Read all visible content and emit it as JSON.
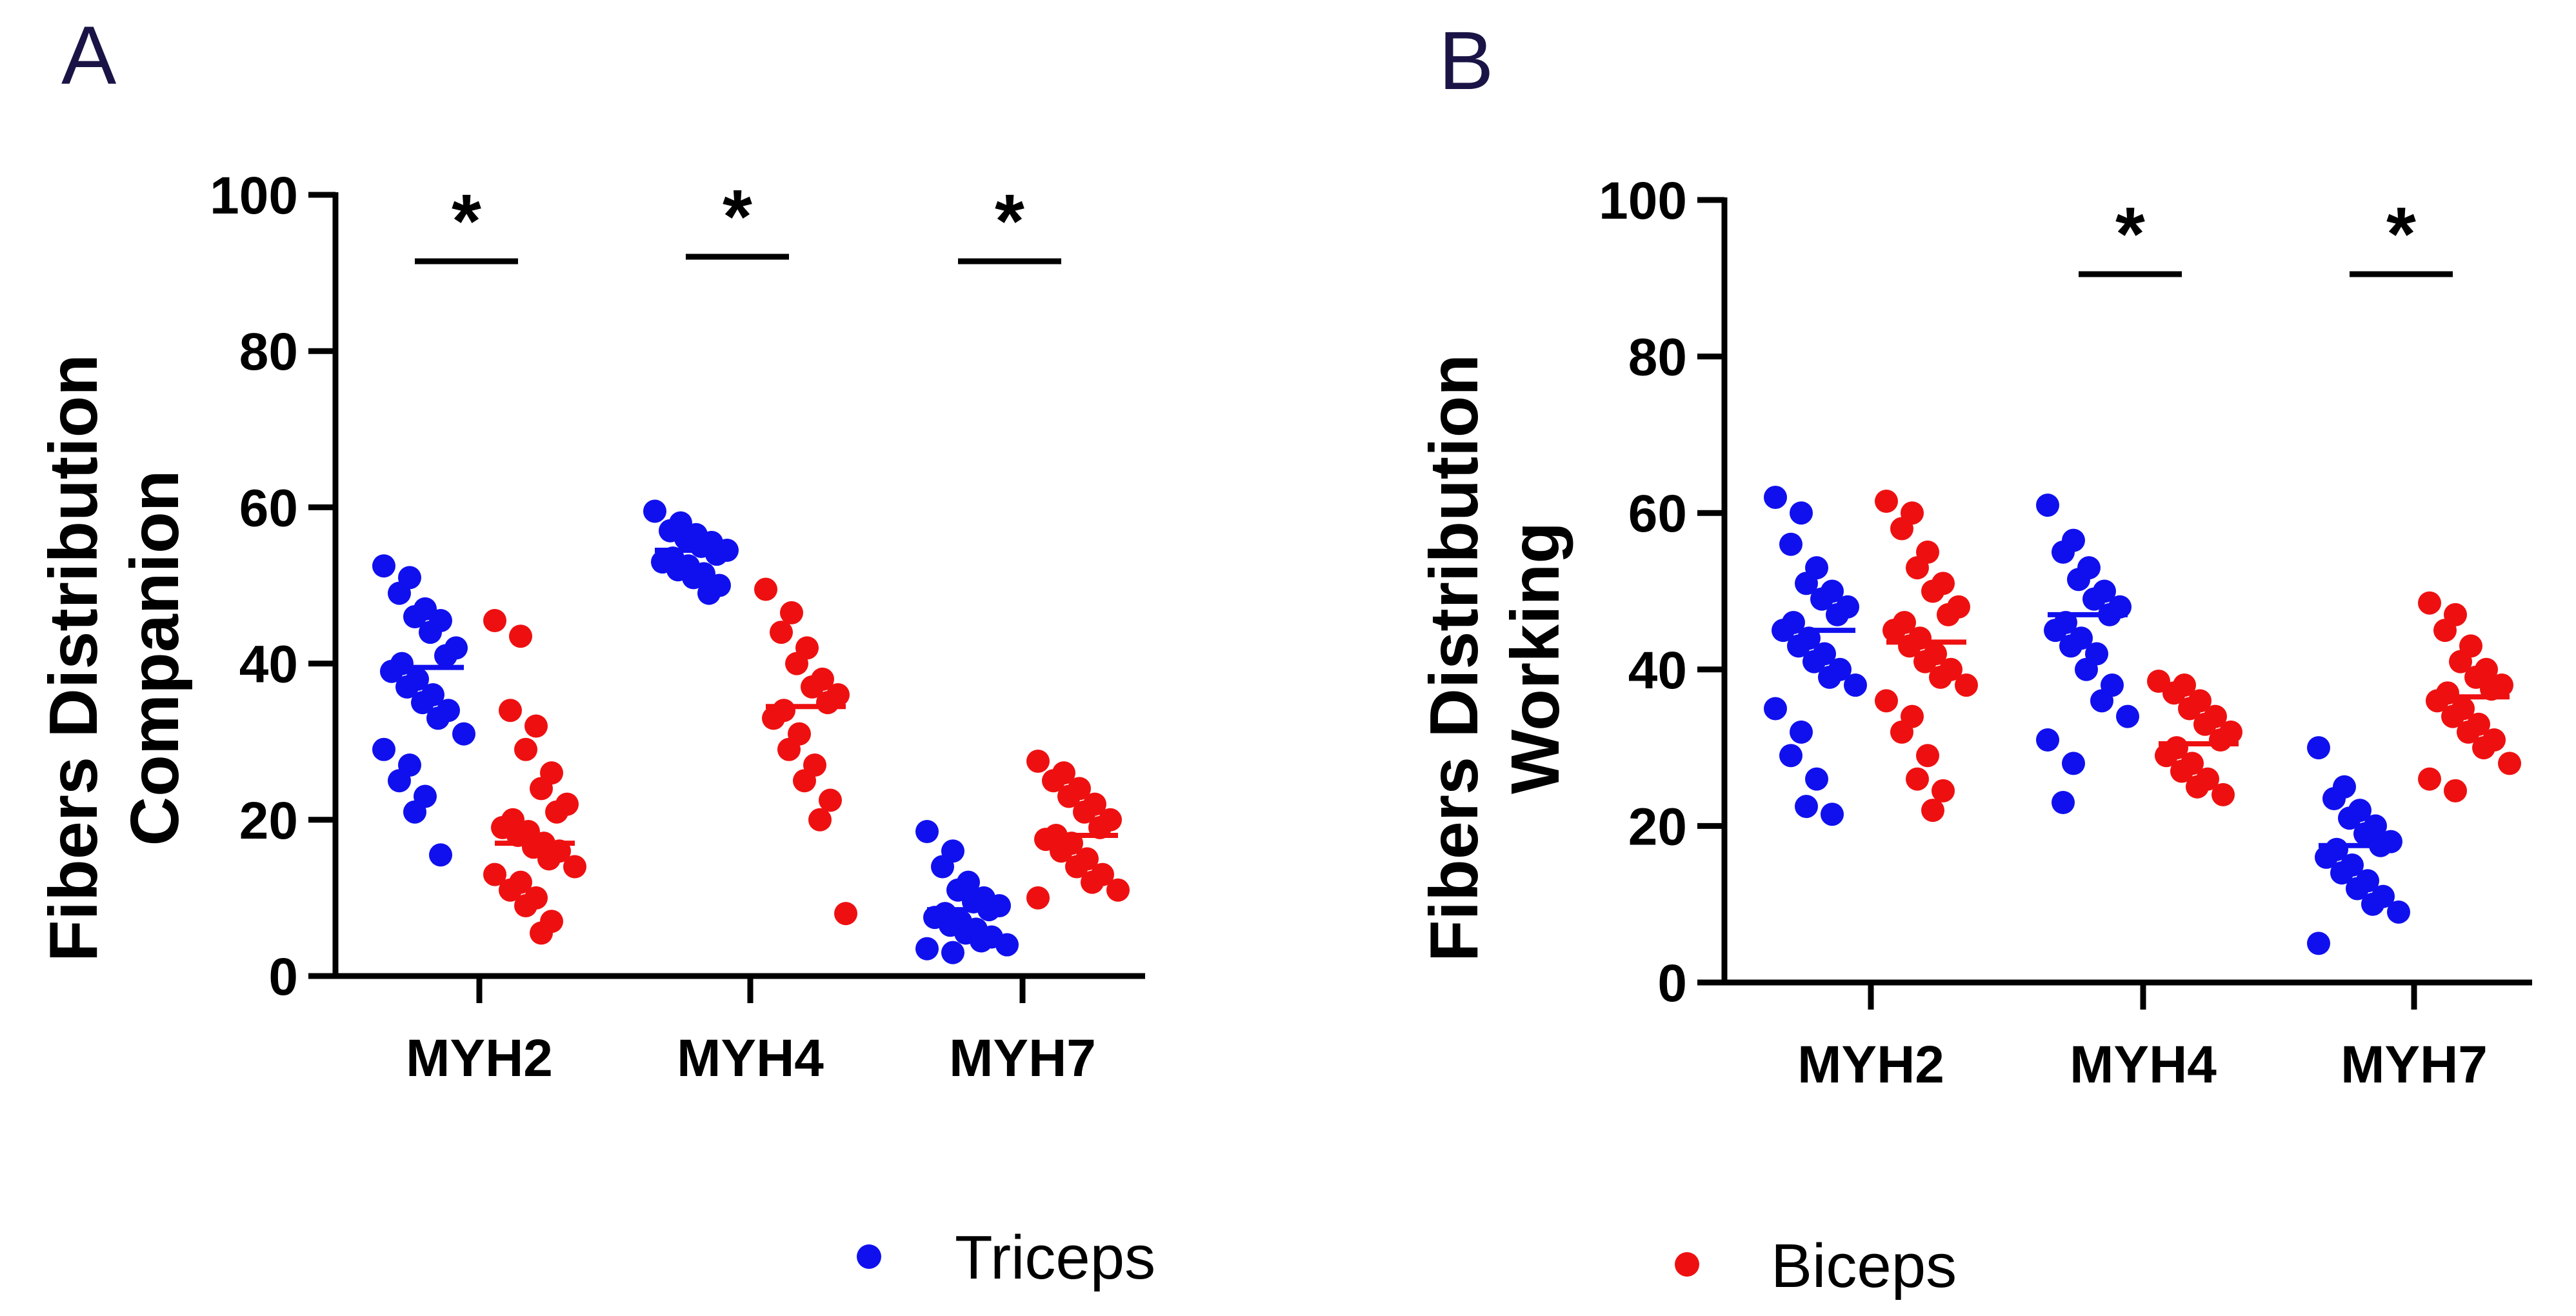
{
  "chart_data": [
    {
      "type": "scatter",
      "panel_label": "A",
      "ylabel": [
        "Fibers Distribution",
        "Companion"
      ],
      "ylim": [
        0,
        100
      ],
      "yticks": [
        "0",
        "20",
        "40",
        "60",
        "80",
        "100"
      ],
      "categories": [
        "MYH2",
        "MYH4",
        "MYH7"
      ],
      "significance": [
        "*",
        "*",
        "*"
      ],
      "series": [
        {
          "name": "Triceps",
          "color": "#1010ee",
          "mean": [
            39.5,
            54.5,
            8.5
          ],
          "points": [
            [
              52.5,
              51,
              49,
              47,
              46,
              45.5,
              44,
              42,
              41,
              40,
              39,
              38,
              37,
              36,
              35,
              34,
              33,
              31,
              29,
              27,
              25,
              23,
              21,
              15.5
            ],
            [
              59.5,
              58,
              57,
              56.5,
              56,
              55.5,
              55,
              54.5,
              54,
              53.5,
              53,
              52.5,
              52,
              51.5,
              51,
              50,
              49
            ],
            [
              18.5,
              16,
              14,
              12,
              11,
              10,
              9.5,
              9,
              8.5,
              8,
              7.5,
              7,
              6.5,
              6,
              5.5,
              5,
              4.5,
              4,
              3.5,
              3
            ]
          ]
        },
        {
          "name": "Biceps",
          "color": "#ee1010",
          "mean": [
            17,
            34.5,
            18
          ],
          "points": [
            [
              45.5,
              43.5,
              34,
              32,
              29,
              26,
              24,
              22,
              21,
              20,
              19,
              18.5,
              18,
              17,
              16.5,
              16,
              15,
              14,
              13,
              12,
              11,
              10,
              9,
              7,
              5.5
            ],
            [
              49.5,
              46.5,
              44,
              42,
              40,
              38,
              37,
              36,
              35,
              34,
              33,
              31,
              29,
              27,
              25,
              22.5,
              20,
              8
            ],
            [
              27.5,
              26,
              25,
              24,
              23,
              22,
              21,
              20,
              19,
              18,
              17.5,
              17,
              16,
              15,
              14,
              13,
              12,
              11,
              10
            ]
          ]
        }
      ],
      "legend": [
        "Triceps"
      ]
    },
    {
      "type": "scatter",
      "panel_label": "B",
      "ylabel": [
        "Fibers Distribution",
        "Working"
      ],
      "ylim": [
        0,
        100
      ],
      "yticks": [
        "0",
        "20",
        "40",
        "60",
        "80",
        "100"
      ],
      "categories": [
        "MYH2",
        "MYH4",
        "MYH7"
      ],
      "significance": [
        "",
        "*",
        "*"
      ],
      "series": [
        {
          "name": "Triceps",
          "color": "#1010ee",
          "mean": [
            45,
            47,
            17.5
          ],
          "points": [
            [
              62,
              60,
              56,
              53,
              51,
              50,
              49,
              48,
              47,
              46,
              45,
              44,
              43,
              42,
              41,
              40,
              39,
              38,
              35,
              32,
              29,
              26,
              22.5,
              21.5
            ],
            [
              61,
              56.5,
              55,
              53,
              51.5,
              50,
              49,
              48,
              47,
              46,
              45,
              44,
              43,
              42,
              40,
              38,
              36,
              34,
              31,
              28,
              23
            ],
            [
              30,
              25,
              23.5,
              22,
              21,
              20,
              19,
              18,
              17.5,
              17,
              16,
              15,
              14,
              13,
              12,
              11,
              10,
              9,
              5
            ]
          ]
        },
        {
          "name": "Biceps",
          "color": "#ee1010",
          "mean": [
            43.5,
            30.5,
            36.5
          ],
          "points": [
            [
              61.5,
              60,
              58,
              55,
              53,
              51,
              50,
              48,
              47,
              46,
              45,
              44,
              43,
              42,
              41,
              40,
              39,
              38,
              36,
              34,
              32,
              29,
              26,
              24.5,
              22
            ],
            [
              38.5,
              38,
              37,
              36,
              35,
              34,
              33,
              32,
              31,
              30,
              29,
              28,
              27,
              26,
              25,
              24
            ],
            [
              48.5,
              47,
              45,
              43,
              41,
              40,
              39,
              38,
              37.5,
              37,
              36,
              35,
              34,
              33,
              32,
              31,
              30,
              28,
              26,
              24.5
            ]
          ]
        }
      ],
      "legend": [
        "Biceps"
      ]
    }
  ]
}
